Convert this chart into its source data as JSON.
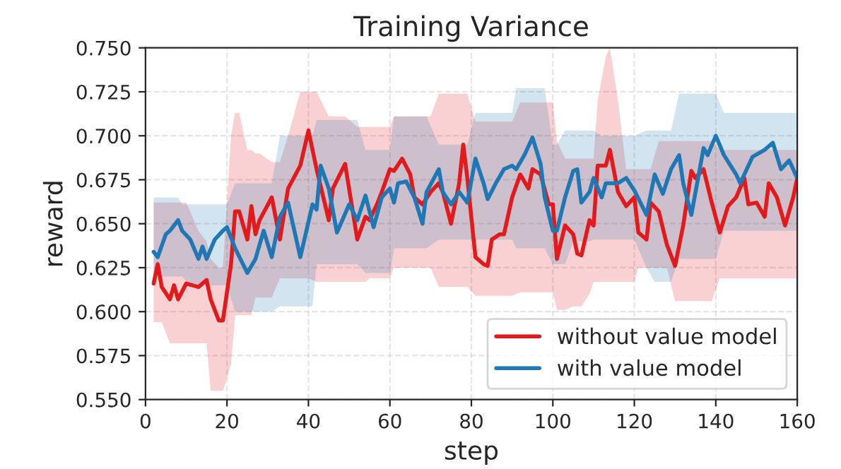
{
  "chart_data": {
    "type": "line",
    "title": "Training Variance",
    "xlabel": "step",
    "ylabel": "reward",
    "xlim": [
      0,
      160
    ],
    "xticks": [
      0,
      20,
      40,
      60,
      80,
      100,
      120,
      140,
      160
    ],
    "ylim": [
      0.55,
      0.75
    ],
    "yticks": [
      {
        "value": 0.55,
        "label": "0.550"
      },
      {
        "value": 0.575,
        "label": "0.575"
      },
      {
        "value": 0.6,
        "label": "0.600"
      },
      {
        "value": 0.625,
        "label": "0.625"
      },
      {
        "value": 0.65,
        "label": "0.650"
      },
      {
        "value": 0.675,
        "label": "0.675"
      },
      {
        "value": 0.7,
        "label": "0.700"
      },
      {
        "value": 0.725,
        "label": "0.725"
      },
      {
        "value": 0.75,
        "label": "0.750"
      }
    ],
    "grid": true,
    "legend": "bottom right",
    "line_style": "solid",
    "marker": "none",
    "series": [
      {
        "name": "without value model",
        "color": "#e31a1c",
        "x": [
          2,
          3,
          4,
          6,
          7,
          8,
          10,
          13,
          15,
          16,
          18,
          19,
          21,
          22,
          23,
          25,
          26,
          27,
          28,
          31,
          33,
          35,
          38,
          40,
          42,
          45,
          46,
          49,
          52,
          54,
          55,
          57,
          58,
          60,
          61,
          63,
          65,
          66,
          68,
          70,
          72,
          73,
          75,
          77,
          78,
          79,
          81,
          83,
          84,
          85,
          87,
          88,
          90,
          92,
          94,
          95,
          97,
          99,
          100,
          101,
          103,
          105,
          106,
          107,
          109,
          110,
          111,
          113,
          114,
          116,
          118,
          120,
          121,
          123,
          124,
          126,
          128,
          130,
          132,
          134,
          135,
          137,
          139,
          141,
          143,
          145,
          147,
          148,
          150,
          152,
          153,
          155,
          157,
          159,
          160
        ],
        "values": [
          0.616,
          0.627,
          0.614,
          0.607,
          0.615,
          0.607,
          0.616,
          0.614,
          0.618,
          0.607,
          0.595,
          0.595,
          0.627,
          0.657,
          0.657,
          0.641,
          0.66,
          0.644,
          0.652,
          0.665,
          0.641,
          0.67,
          0.683,
          0.703,
          0.681,
          0.652,
          0.67,
          0.684,
          0.641,
          0.654,
          0.652,
          0.662,
          0.668,
          0.681,
          0.68,
          0.687,
          0.678,
          0.665,
          0.661,
          0.668,
          0.673,
          0.668,
          0.65,
          0.673,
          0.695,
          0.676,
          0.631,
          0.627,
          0.626,
          0.641,
          0.644,
          0.644,
          0.665,
          0.678,
          0.67,
          0.681,
          0.678,
          0.661,
          0.661,
          0.63,
          0.649,
          0.644,
          0.633,
          0.632,
          0.652,
          0.649,
          0.683,
          0.683,
          0.692,
          0.668,
          0.66,
          0.665,
          0.645,
          0.641,
          0.662,
          0.657,
          0.638,
          0.626,
          0.649,
          0.68,
          0.676,
          0.681,
          0.662,
          0.645,
          0.66,
          0.665,
          0.676,
          0.661,
          0.662,
          0.654,
          0.673,
          0.665,
          0.649,
          0.665,
          0.676
        ],
        "lower": [
          0.594,
          0.594,
          0.594,
          0.582,
          0.582,
          0.582,
          0.582,
          0.582,
          0.582,
          0.555,
          0.555,
          0.555,
          0.57,
          0.598,
          0.598,
          0.598,
          0.598,
          0.608,
          0.608,
          0.608,
          0.619,
          0.619,
          0.619,
          0.619,
          0.617,
          0.617,
          0.617,
          0.617,
          0.617,
          0.617,
          0.619,
          0.619,
          0.619,
          0.619,
          0.625,
          0.625,
          0.625,
          0.625,
          0.625,
          0.625,
          0.614,
          0.614,
          0.614,
          0.614,
          0.614,
          0.614,
          0.609,
          0.609,
          0.609,
          0.609,
          0.609,
          0.609,
          0.609,
          0.611,
          0.611,
          0.611,
          0.611,
          0.611,
          0.611,
          0.601,
          0.601,
          0.603,
          0.603,
          0.603,
          0.61,
          0.617,
          0.617,
          0.617,
          0.617,
          0.617,
          0.617,
          0.617,
          0.625,
          0.625,
          0.625,
          0.625,
          0.625,
          0.606,
          0.606,
          0.606,
          0.606,
          0.606,
          0.606,
          0.619,
          0.619,
          0.619,
          0.619,
          0.619,
          0.619,
          0.619,
          0.619,
          0.619,
          0.619,
          0.619,
          0.619
        ],
        "upper": [
          0.662,
          0.662,
          0.662,
          0.662,
          0.662,
          0.662,
          0.662,
          0.646,
          0.64,
          0.63,
          0.625,
          0.625,
          0.7,
          0.713,
          0.713,
          0.692,
          0.692,
          0.69,
          0.69,
          0.685,
          0.685,
          0.7,
          0.725,
          0.725,
          0.725,
          0.711,
          0.711,
          0.711,
          0.705,
          0.705,
          0.705,
          0.705,
          0.705,
          0.705,
          0.711,
          0.711,
          0.711,
          0.711,
          0.711,
          0.711,
          0.724,
          0.724,
          0.724,
          0.724,
          0.724,
          0.724,
          0.708,
          0.708,
          0.708,
          0.708,
          0.708,
          0.708,
          0.708,
          0.719,
          0.719,
          0.719,
          0.719,
          0.719,
          0.719,
          0.697,
          0.687,
          0.687,
          0.687,
          0.687,
          0.687,
          0.687,
          0.72,
          0.745,
          0.75,
          0.72,
          0.681,
          0.681,
          0.681,
          0.681,
          0.681,
          0.697,
          0.697,
          0.697,
          0.697,
          0.697,
          0.697,
          0.697,
          0.697,
          0.692,
          0.692,
          0.692,
          0.692,
          0.692,
          0.692,
          0.692,
          0.692,
          0.692,
          0.692,
          0.692,
          0.692
        ]
      },
      {
        "name": "with value model",
        "color": "#1f77b4",
        "x": [
          2,
          3,
          5,
          6,
          8,
          9,
          11,
          13,
          14,
          15,
          17,
          19,
          20,
          22,
          25,
          27,
          29,
          31,
          33,
          35,
          38,
          41,
          42,
          43,
          45,
          47,
          50,
          52,
          54,
          56,
          58,
          60,
          61,
          62,
          64,
          66,
          68,
          69,
          72,
          73,
          75,
          77,
          79,
          81,
          83,
          84,
          86,
          88,
          90,
          91,
          93,
          95,
          97,
          98,
          100,
          101,
          103,
          105,
          106,
          107,
          109,
          110,
          112,
          113,
          116,
          118,
          120,
          123,
          125,
          127,
          129,
          131,
          132,
          134,
          137,
          138,
          140,
          142,
          145,
          146,
          149,
          152,
          154,
          156,
          158,
          160
        ],
        "values": [
          0.634,
          0.631,
          0.644,
          0.646,
          0.652,
          0.646,
          0.641,
          0.63,
          0.637,
          0.63,
          0.641,
          0.646,
          0.648,
          0.636,
          0.622,
          0.63,
          0.646,
          0.631,
          0.654,
          0.662,
          0.631,
          0.661,
          0.658,
          0.683,
          0.67,
          0.645,
          0.661,
          0.652,
          0.666,
          0.648,
          0.665,
          0.67,
          0.662,
          0.673,
          0.674,
          0.665,
          0.65,
          0.668,
          0.681,
          0.668,
          0.661,
          0.668,
          0.662,
          0.687,
          0.673,
          0.664,
          0.673,
          0.681,
          0.683,
          0.681,
          0.689,
          0.699,
          0.684,
          0.665,
          0.646,
          0.646,
          0.665,
          0.68,
          0.681,
          0.662,
          0.668,
          0.676,
          0.665,
          0.673,
          0.673,
          0.676,
          0.669,
          0.655,
          0.678,
          0.667,
          0.681,
          0.689,
          0.673,
          0.655,
          0.693,
          0.689,
          0.7,
          0.689,
          0.678,
          0.673,
          0.688,
          0.692,
          0.696,
          0.681,
          0.686,
          0.676
        ],
        "lower": [
          0.62,
          0.62,
          0.62,
          0.62,
          0.62,
          0.62,
          0.615,
          0.615,
          0.615,
          0.615,
          0.615,
          0.615,
          0.615,
          0.6,
          0.6,
          0.6,
          0.6,
          0.6,
          0.603,
          0.603,
          0.603,
          0.603,
          0.627,
          0.627,
          0.627,
          0.627,
          0.627,
          0.627,
          0.622,
          0.622,
          0.622,
          0.622,
          0.636,
          0.636,
          0.636,
          0.636,
          0.636,
          0.636,
          0.641,
          0.641,
          0.641,
          0.641,
          0.641,
          0.641,
          0.641,
          0.641,
          0.641,
          0.641,
          0.641,
          0.636,
          0.636,
          0.636,
          0.636,
          0.636,
          0.627,
          0.627,
          0.627,
          0.64,
          0.64,
          0.64,
          0.64,
          0.641,
          0.641,
          0.641,
          0.641,
          0.641,
          0.641,
          0.625,
          0.617,
          0.617,
          0.617,
          0.63,
          0.63,
          0.63,
          0.63,
          0.63,
          0.63,
          0.646,
          0.646,
          0.646,
          0.646,
          0.646,
          0.646,
          0.646,
          0.646,
          0.646
        ],
        "upper": [
          0.665,
          0.665,
          0.665,
          0.665,
          0.665,
          0.661,
          0.661,
          0.661,
          0.661,
          0.661,
          0.661,
          0.661,
          0.661,
          0.673,
          0.673,
          0.673,
          0.673,
          0.673,
          0.7,
          0.7,
          0.7,
          0.7,
          0.709,
          0.709,
          0.709,
          0.709,
          0.709,
          0.709,
          0.692,
          0.692,
          0.692,
          0.692,
          0.711,
          0.711,
          0.711,
          0.711,
          0.711,
          0.711,
          0.695,
          0.695,
          0.695,
          0.695,
          0.695,
          0.713,
          0.713,
          0.713,
          0.713,
          0.713,
          0.713,
          0.727,
          0.727,
          0.727,
          0.727,
          0.727,
          0.695,
          0.695,
          0.703,
          0.703,
          0.703,
          0.703,
          0.703,
          0.703,
          0.7,
          0.7,
          0.7,
          0.7,
          0.7,
          0.703,
          0.703,
          0.703,
          0.703,
          0.724,
          0.724,
          0.724,
          0.724,
          0.724,
          0.724,
          0.713,
          0.713,
          0.713,
          0.713,
          0.713,
          0.713,
          0.713,
          0.713,
          0.713
        ]
      }
    ]
  }
}
